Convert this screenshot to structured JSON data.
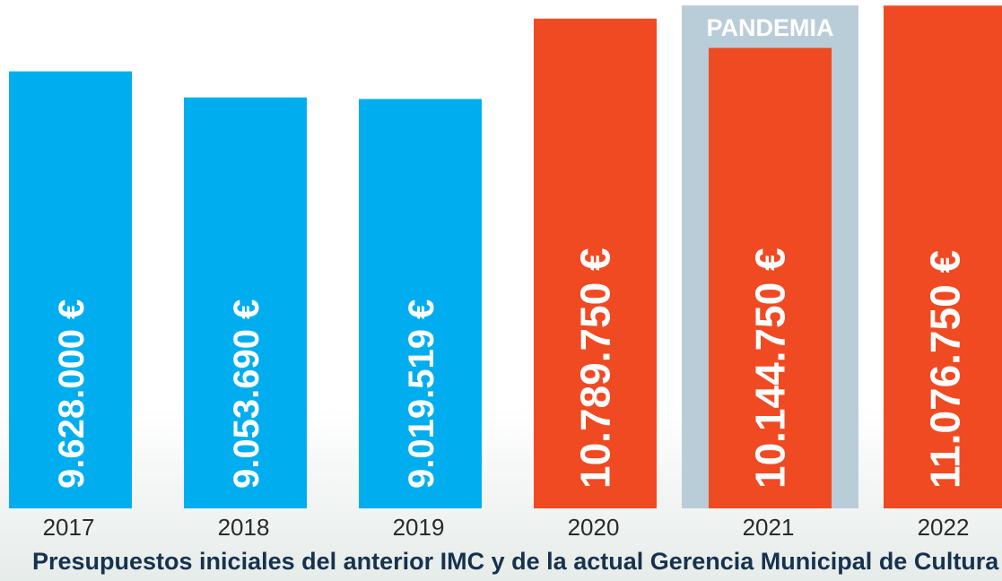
{
  "chart_data": {
    "type": "bar",
    "title": "Presupuestos iniciales del anterior IMC y de la actual Gerencia Municipal de Cultura",
    "categories": [
      "2017",
      "2018",
      "2019",
      "2020",
      "2021",
      "2022"
    ],
    "values": [
      9628000,
      9053690,
      9019519,
      10789750,
      10144750,
      11076750
    ],
    "value_labels": [
      "9.628.000 €",
      "9.053.690 €",
      "9.019.519 €",
      "10.789.750 €",
      "10.144.750 €",
      "11.076.750 €"
    ],
    "colors": [
      "#00aeef",
      "#00aeef",
      "#00aeef",
      "#f04a23",
      "#f04a23",
      "#f04a23"
    ],
    "annotation": {
      "text": "PANDEMIA",
      "category": "2021"
    },
    "ylim": [
      0,
      11200000
    ]
  }
}
